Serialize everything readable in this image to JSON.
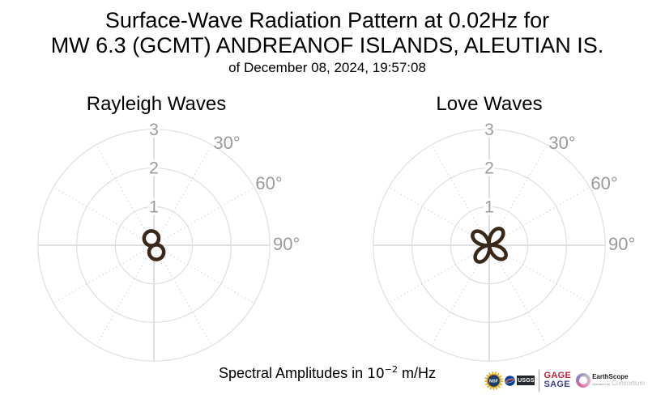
{
  "header": {
    "title_line1": "Surface-Wave Radiation Pattern at 0.02Hz for",
    "title_line2": "MW 6.3 (GCMT) ANDREANOF ISLANDS, ALEUTIAN IS.",
    "date_line": "of December 08, 2024, 19:57:08"
  },
  "chart_data": [
    {
      "type": "polar",
      "title": "Rayleigh Waves",
      "r_ticks": [
        1,
        2,
        3
      ],
      "r_max": 3,
      "theta_labels": [
        {
          "text": "30°",
          "azimuth_deg": 30
        },
        {
          "text": "60°",
          "azimuth_deg": 60
        },
        {
          "text": "90°",
          "azimuth_deg": 90
        }
      ],
      "grid": {
        "grid_on": true,
        "solid_axes_deg": [
          0,
          90,
          180,
          270
        ],
        "dotted_spokes_deg": [
          30,
          60,
          120,
          150,
          210,
          240,
          300,
          330
        ]
      },
      "pattern": {
        "lobes": 2,
        "max_amplitude": 0.38,
        "lobe_azimuths_deg": [
          340,
          160
        ],
        "color": "#3a2818",
        "fill": "#ffffff"
      },
      "units": "10^-2 m/Hz"
    },
    {
      "type": "polar",
      "title": "Love Waves",
      "r_ticks": [
        1,
        2,
        3
      ],
      "r_max": 3,
      "theta_labels": [
        {
          "text": "30°",
          "azimuth_deg": 30
        },
        {
          "text": "60°",
          "azimuth_deg": 60
        },
        {
          "text": "90°",
          "azimuth_deg": 90
        }
      ],
      "grid": {
        "grid_on": true,
        "solid_axes_deg": [
          0,
          90,
          180,
          270
        ],
        "dotted_spokes_deg": [
          30,
          60,
          120,
          150,
          210,
          240,
          300,
          330
        ]
      },
      "pattern": {
        "lobes": 4,
        "max_amplitude": 0.52,
        "lobe_azimuths_deg": [
          38,
          128,
          218,
          308
        ],
        "color": "#3a2818",
        "fill": "#ffffff"
      },
      "units": "10^-2 m/Hz"
    }
  ],
  "footer": {
    "prefix": "Spectral Amplitudes in ",
    "base": "10",
    "exponent": "−2",
    "suffix": " m/Hz"
  },
  "logos": {
    "nsf_label": "NSF",
    "usgs_label": "USGS",
    "gage_label": "GAGE",
    "sage_label": "SAGE",
    "earthscope_name": "EarthScope",
    "earthscope_operated_by": "Operated by",
    "earthscope_subname": "Consortium"
  },
  "colors": {
    "pattern_stroke": "#3a2818",
    "grid_circle": "#e0e0e0",
    "grid_axis": "#cfcfcf",
    "axis_label_gray": "#9a9a9a",
    "gage_red": "#c41e3a",
    "sage_purple": "#3f3c8e",
    "nsf_gold": "#e2a917",
    "nsf_navy": "#1a3a6b",
    "nasa_blue": "#0b3d91",
    "nasa_red": "#fc3d21",
    "usgs_dark": "#23272b"
  }
}
